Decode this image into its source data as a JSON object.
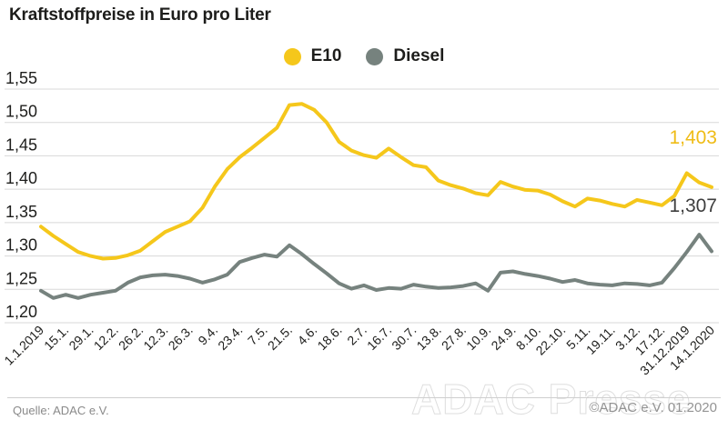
{
  "title": "Kraftstoffpreise in Euro pro Liter",
  "legend": {
    "e10": "E10",
    "diesel": "Diesel"
  },
  "footer": {
    "source": "Quelle: ADAC e.V.",
    "watermark": "ADAC Presse",
    "copyright": "©ADAC e.V. 01.2020"
  },
  "colors": {
    "e10": "#f5c71b",
    "diesel": "#76827e",
    "text": "#1d1d1b",
    "grid": "#d8d8d8",
    "e10_label": "#efbc16",
    "diesel_label": "#3e3e3e"
  },
  "chart_data": {
    "type": "line",
    "title": "Kraftstoffpreise in Euro pro Liter",
    "ylabel": "Euro pro Liter",
    "ylim": [
      1.2,
      1.55
    ],
    "y_tick_step": 0.05,
    "y_ticks": [
      "1,55",
      "1,50",
      "1,45",
      "1,40",
      "1,35",
      "1,30",
      "1,25",
      "1,20"
    ],
    "x_tick_labels": [
      "1.1.2019",
      "15.1.",
      "29.1.",
      "12.2.",
      "26.2.",
      "12.3.",
      "26.3.",
      "9.4.",
      "23.4.",
      "7.5.",
      "21.5.",
      "4.6.",
      "18.6.",
      "2.7.",
      "16.7.",
      "30.7.",
      "13.8.",
      "27.8.",
      "10.9.",
      "24.9.",
      "8.10.",
      "22.10.",
      "5.11.",
      "19.11.",
      "3.12.",
      "17.12.",
      "31.12.2019",
      "14.1.2020"
    ],
    "x_note": "weekly data points, axis tick every two weeks",
    "grid": true,
    "legend_position": "top-center",
    "series": [
      {
        "name": "E10",
        "color": "#f5c71b",
        "values": [
          1.344,
          1.33,
          1.318,
          1.306,
          1.3,
          1.296,
          1.297,
          1.301,
          1.308,
          1.322,
          1.336,
          1.344,
          1.352,
          1.372,
          1.404,
          1.43,
          1.448,
          1.462,
          1.477,
          1.492,
          1.526,
          1.528,
          1.519,
          1.5,
          1.471,
          1.458,
          1.451,
          1.447,
          1.461,
          1.448,
          1.436,
          1.433,
          1.413,
          1.406,
          1.401,
          1.394,
          1.391,
          1.411,
          1.404,
          1.399,
          1.398,
          1.392,
          1.382,
          1.374,
          1.386,
          1.383,
          1.378,
          1.374,
          1.384,
          1.38,
          1.376,
          1.39,
          1.424,
          1.41,
          1.403
        ]
      },
      {
        "name": "Diesel",
        "color": "#76827e",
        "values": [
          1.248,
          1.237,
          1.242,
          1.237,
          1.242,
          1.245,
          1.248,
          1.26,
          1.268,
          1.271,
          1.272,
          1.27,
          1.266,
          1.26,
          1.265,
          1.272,
          1.291,
          1.297,
          1.302,
          1.299,
          1.316,
          1.303,
          1.288,
          1.274,
          1.259,
          1.251,
          1.256,
          1.249,
          1.252,
          1.251,
          1.257,
          1.254,
          1.252,
          1.253,
          1.255,
          1.259,
          1.248,
          1.275,
          1.277,
          1.273,
          1.27,
          1.266,
          1.261,
          1.264,
          1.259,
          1.257,
          1.256,
          1.259,
          1.258,
          1.256,
          1.26,
          1.282,
          1.306,
          1.332,
          1.307
        ]
      }
    ],
    "end_labels": {
      "e10": "1,403",
      "diesel": "1,307"
    }
  }
}
